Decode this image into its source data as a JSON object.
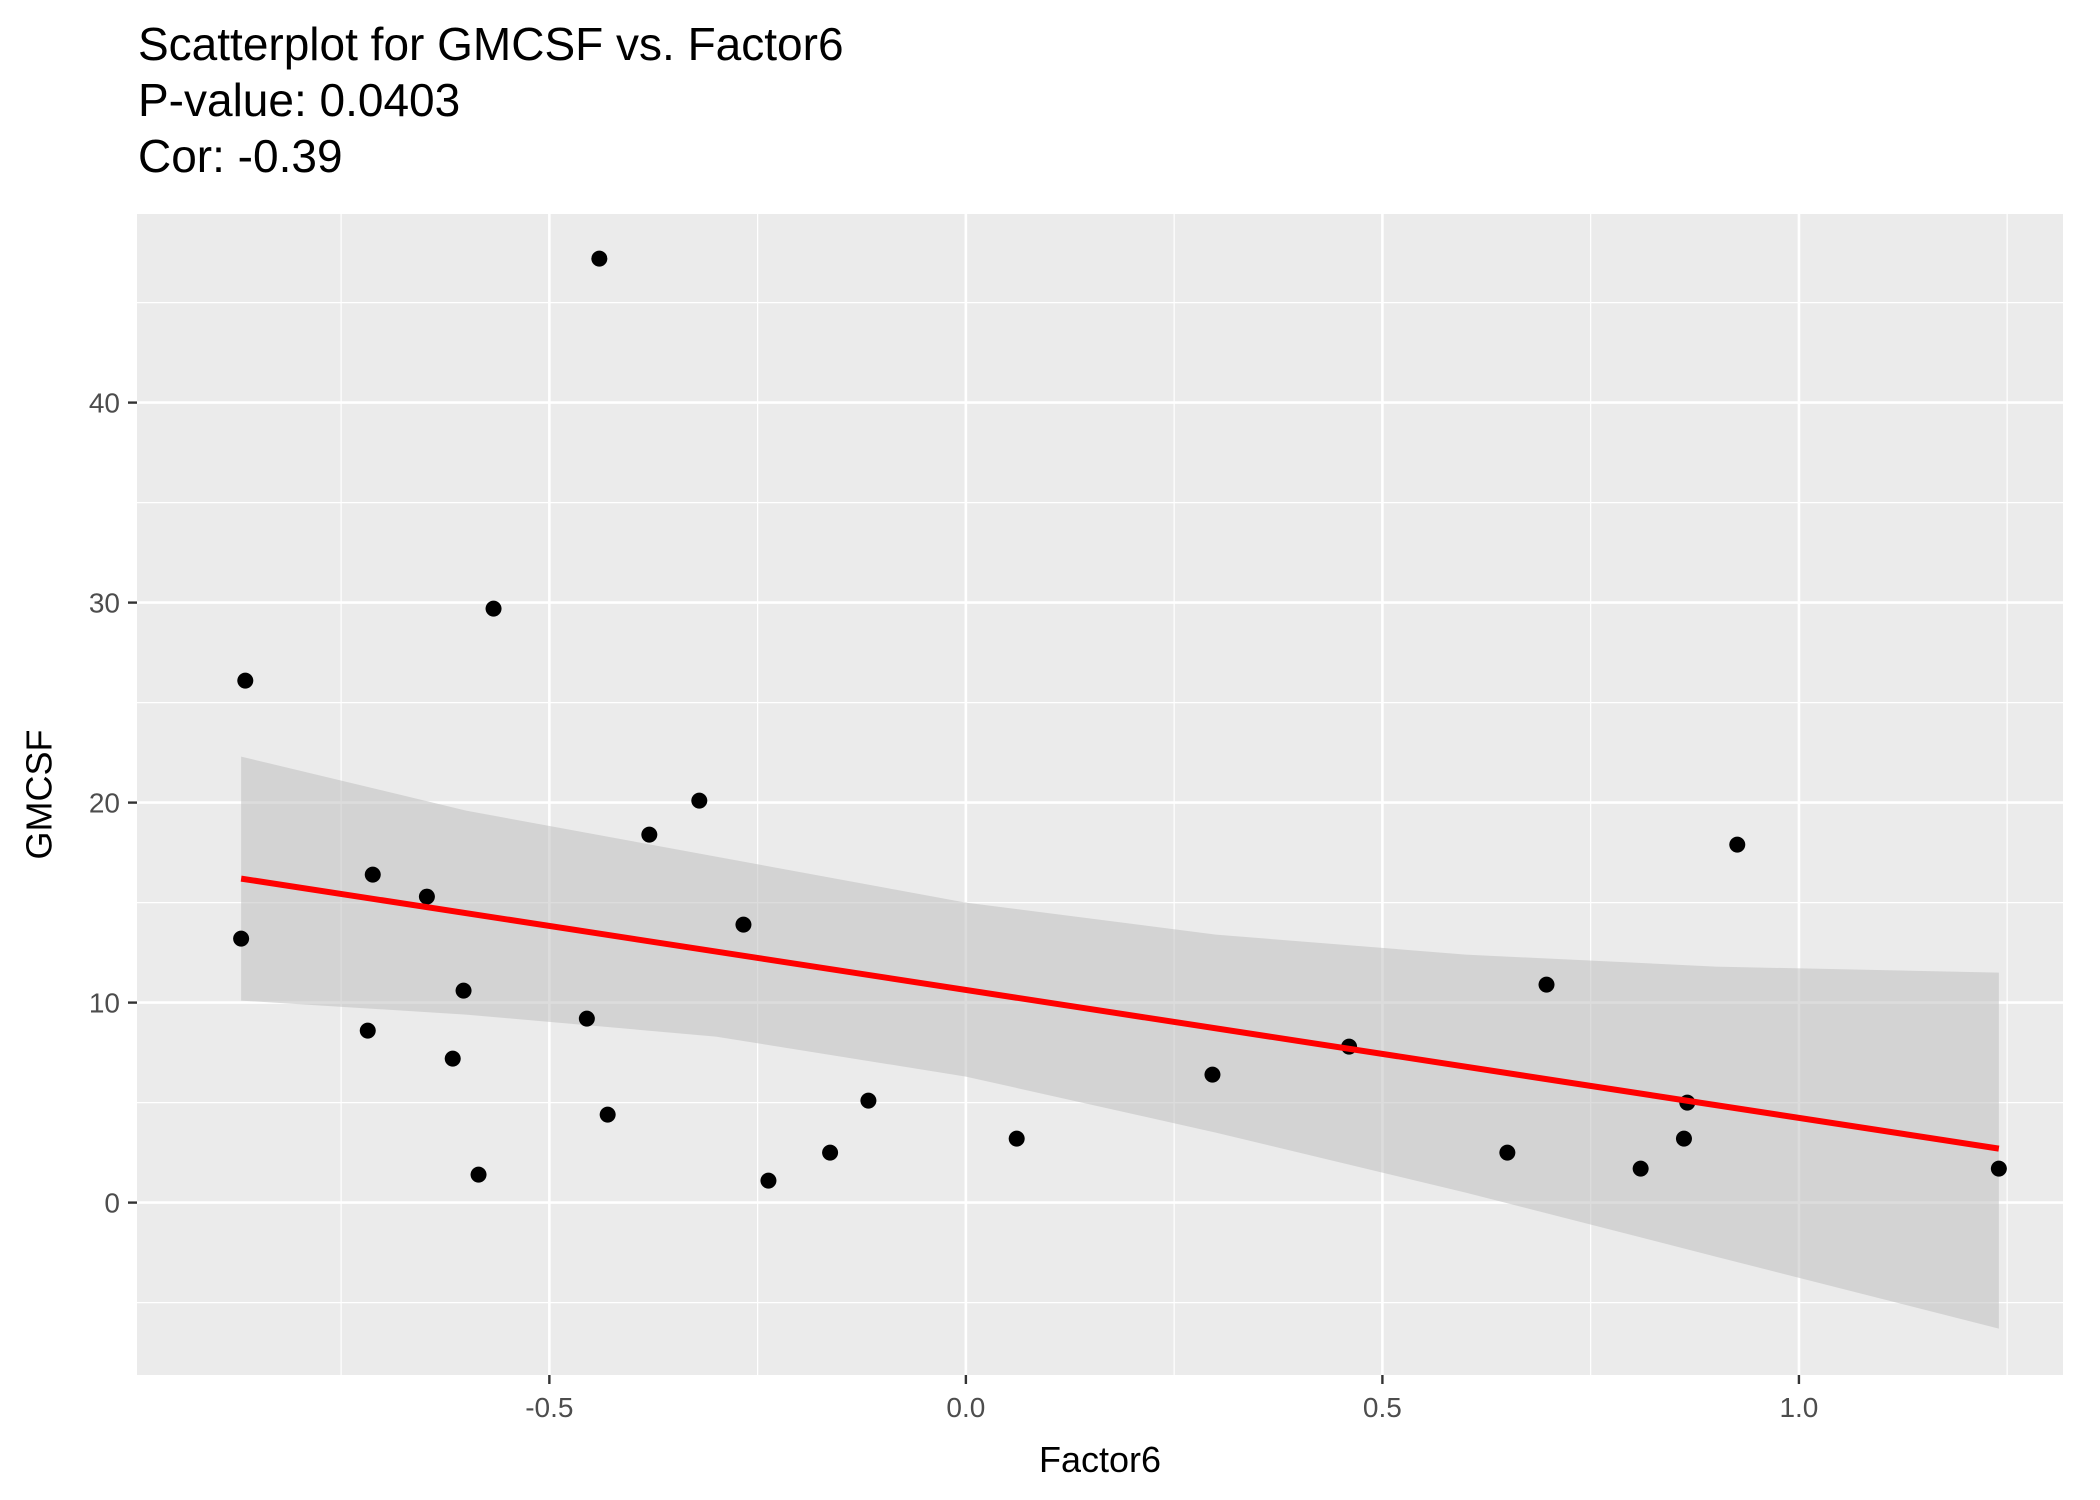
{
  "chart_data": {
    "type": "scatter",
    "title_lines": [
      "Scatterplot for GMCSF vs. Factor6",
      "P-value: 0.0403",
      "Cor: -0.39"
    ],
    "xlabel": "Factor6",
    "ylabel": "GMCSF",
    "xlim": [
      -0.995,
      1.317
    ],
    "ylim": [
      -8.62,
      49.43
    ],
    "x_ticks": [
      -0.5,
      0.0,
      0.5,
      1.0
    ],
    "x_tick_labels": [
      "-0.5",
      "0.0",
      "0.5",
      "1.0"
    ],
    "y_ticks": [
      0,
      10,
      20,
      30,
      40
    ],
    "y_tick_labels": [
      "0",
      "10",
      "20",
      "30",
      "40"
    ],
    "grid": true,
    "points": [
      {
        "x": -0.865,
        "y": 26.1
      },
      {
        "x": -0.87,
        "y": 13.2
      },
      {
        "x": -0.712,
        "y": 16.4
      },
      {
        "x": -0.718,
        "y": 8.6
      },
      {
        "x": -0.647,
        "y": 15.3
      },
      {
        "x": -0.603,
        "y": 10.6
      },
      {
        "x": -0.616,
        "y": 7.2
      },
      {
        "x": -0.585,
        "y": 1.4
      },
      {
        "x": -0.567,
        "y": 29.7
      },
      {
        "x": -0.44,
        "y": 47.2
      },
      {
        "x": -0.455,
        "y": 9.2
      },
      {
        "x": -0.43,
        "y": 4.4
      },
      {
        "x": -0.38,
        "y": 18.4
      },
      {
        "x": -0.32,
        "y": 20.1
      },
      {
        "x": -0.267,
        "y": 13.9
      },
      {
        "x": -0.237,
        "y": 1.1
      },
      {
        "x": -0.163,
        "y": 2.5
      },
      {
        "x": -0.117,
        "y": 5.1
      },
      {
        "x": 0.061,
        "y": 3.2
      },
      {
        "x": 0.296,
        "y": 6.4
      },
      {
        "x": 0.46,
        "y": 7.8
      },
      {
        "x": 0.65,
        "y": 2.5
      },
      {
        "x": 0.697,
        "y": 10.9
      },
      {
        "x": 0.81,
        "y": 1.7
      },
      {
        "x": 0.862,
        "y": 3.2
      },
      {
        "x": 0.866,
        "y": 5.0
      },
      {
        "x": 0.926,
        "y": 17.9
      },
      {
        "x": 1.24,
        "y": 1.7
      }
    ],
    "fit_line": {
      "x": [
        -0.87,
        1.24
      ],
      "y": [
        16.2,
        2.7
      ]
    },
    "confidence_band": {
      "x": [
        -0.87,
        -0.6,
        -0.3,
        0.0,
        0.3,
        0.6,
        0.9,
        1.24
      ],
      "upper": [
        22.3,
        19.6,
        17.3,
        15.0,
        13.4,
        12.4,
        11.8,
        11.5
      ],
      "lower": [
        10.1,
        9.4,
        8.3,
        6.3,
        3.5,
        0.5,
        -2.7,
        -6.3
      ]
    },
    "colors": {
      "panel": "#ebebeb",
      "grid_major": "#ffffff",
      "point": "#000000",
      "fit_line": "#ff0000",
      "band": "#c0c0c0"
    }
  }
}
